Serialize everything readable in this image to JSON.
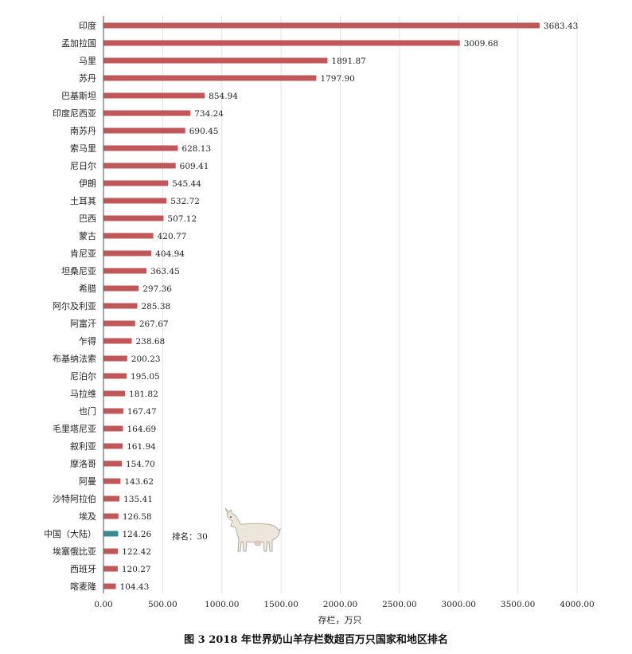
{
  "chart_data": {
    "type": "bar",
    "orientation": "horizontal",
    "categories": [
      "印度",
      "孟加拉国",
      "马里",
      "苏丹",
      "巴基斯坦",
      "印度尼西亚",
      "南苏丹",
      "索马里",
      "尼日尔",
      "伊朗",
      "土耳其",
      "巴西",
      "蒙古",
      "肯尼亚",
      "坦桑尼亚",
      "希腊",
      "阿尔及利亚",
      "阿富汗",
      "乍得",
      "布基纳法索",
      "尼泊尔",
      "马拉维",
      "也门",
      "毛里塔尼亚",
      "叙利亚",
      "摩洛哥",
      "阿曼",
      "沙特阿拉伯",
      "埃及",
      "中国（大陆）",
      "埃塞俄比亚",
      "西班牙",
      "喀麦隆"
    ],
    "values": [
      3683.43,
      3009.68,
      1891.87,
      1797.9,
      854.94,
      734.24,
      690.45,
      628.13,
      609.41,
      545.44,
      532.72,
      507.12,
      420.77,
      404.94,
      363.45,
      297.36,
      285.38,
      267.67,
      238.68,
      200.23,
      195.05,
      181.82,
      167.47,
      164.69,
      161.94,
      154.7,
      143.62,
      135.41,
      126.58,
      124.26,
      122.42,
      120.27,
      104.43
    ],
    "value_labels": [
      "3683.43",
      "3009.68",
      "1891.87",
      "1797.90",
      "854.94",
      "734.24",
      "690.45",
      "628.13",
      "609.41",
      "545.44",
      "532.72",
      "507.12",
      "420.77",
      "404.94",
      "363.45",
      "297.36",
      "285.38",
      "267.67",
      "238.68",
      "200.23",
      "195.05",
      "181.82",
      "167.47",
      "164.69",
      "161.94",
      "154.70",
      "143.62",
      "135.41",
      "126.58",
      "124.26",
      "122.42",
      "120.27",
      "104.43"
    ],
    "highlight_index": 29,
    "xlim": [
      0,
      4000
    ],
    "xticks": [
      "0.00",
      "500.00",
      "1000.00",
      "1500.00",
      "2000.00",
      "2500.00",
      "3000.00",
      "3500.00",
      "4000.00"
    ],
    "xlabel": "存栏，万只",
    "grid": "vertical",
    "annotation": "排名：30",
    "caption": "图 3  2018 年世界奶山羊存栏数超百万只国家和地区排名",
    "colors": {
      "bar": "#c0585a",
      "highlight": "#3a8a96",
      "grid": "#e3e3e3",
      "axis": "#555555"
    }
  },
  "decor": {
    "goat_image": "goat-illustration"
  }
}
